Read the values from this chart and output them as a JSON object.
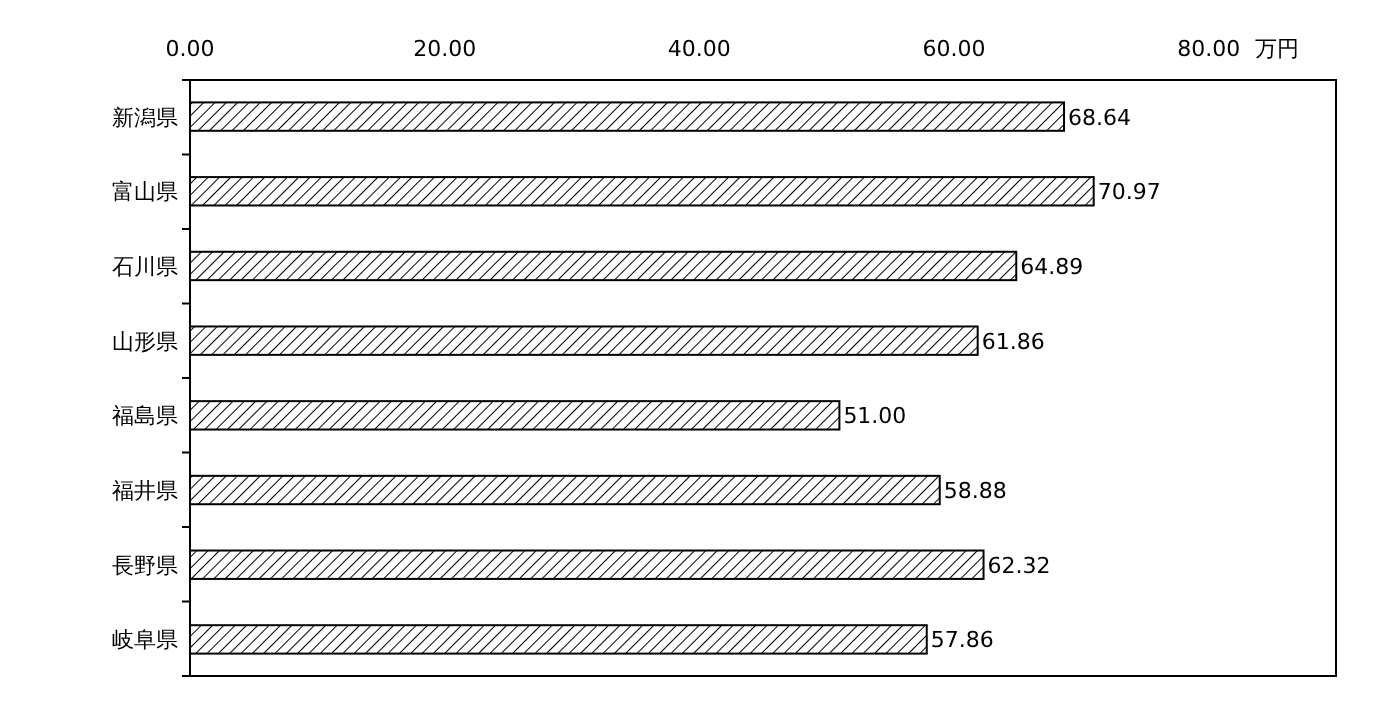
{
  "chart_data": {
    "type": "bar",
    "orientation": "horizontal",
    "xlabel": "万円",
    "categories": [
      "新潟県",
      "富山県",
      "石川県",
      "山形県",
      "福島県",
      "福井県",
      "長野県",
      "岐阜県"
    ],
    "values": [
      68.64,
      70.97,
      64.89,
      61.86,
      51.0,
      58.88,
      62.32,
      57.86
    ],
    "value_labels": [
      "68.64",
      "70.97",
      "64.89",
      "61.86",
      "51.00",
      "58.88",
      "62.32",
      "57.86"
    ],
    "color": "#000000",
    "xlim": [
      0,
      90
    ],
    "xticks": [
      {
        "value": 0,
        "label": "0.00"
      },
      {
        "value": 20,
        "label": "20.00"
      },
      {
        "value": 40,
        "label": "40.00"
      },
      {
        "value": 60,
        "label": "60.00"
      },
      {
        "value": 80,
        "label": "80.00"
      }
    ],
    "grid": false
  }
}
